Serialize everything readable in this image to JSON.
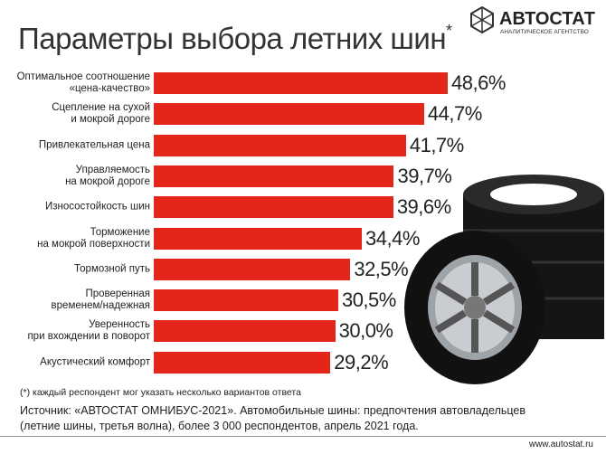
{
  "chart_data": {
    "type": "bar",
    "orientation": "horizontal",
    "title": "Параметры выбора летних шин",
    "title_mark": "*",
    "categories": [
      "Оптимальное соотношение\n«цена-качество»",
      "Сцепление на сухой\nи мокрой дороге",
      "Привлекательная цена",
      "Управляемость\nна мокрой дороге",
      "Износостойкость шин",
      "Торможение\nна мокрой поверхности",
      "Тормозной путь",
      "Проверенная\nвременем/надежная",
      "Уверенность\nпри вхождении в поворот",
      "Акустический комфорт"
    ],
    "values": [
      48.6,
      44.7,
      41.7,
      39.7,
      39.6,
      34.4,
      32.5,
      30.5,
      30.0,
      29.2
    ],
    "value_labels": [
      "48,6%",
      "44,7%",
      "41,7%",
      "39,7%",
      "39,6%",
      "34,4%",
      "32,5%",
      "30,5%",
      "30,0%",
      "29,2%"
    ],
    "color": "#e4261a",
    "footnote": "(*) каждый респондент мог указать несколько вариантов ответа",
    "source": "Источник: «АВТОСТАТ ОМНИБУС-2021». Автомобильные шины: предпочтения автовладельцев\n(летние шины, третья волна), более 3 000 респондентов, апрель 2021 года."
  },
  "logo": {
    "name": "АВТОСТАТ",
    "tagline": "АНАЛИТИЧЕСКОЕ АГЕНТСТВО"
  },
  "website": "www.autostat.ru"
}
